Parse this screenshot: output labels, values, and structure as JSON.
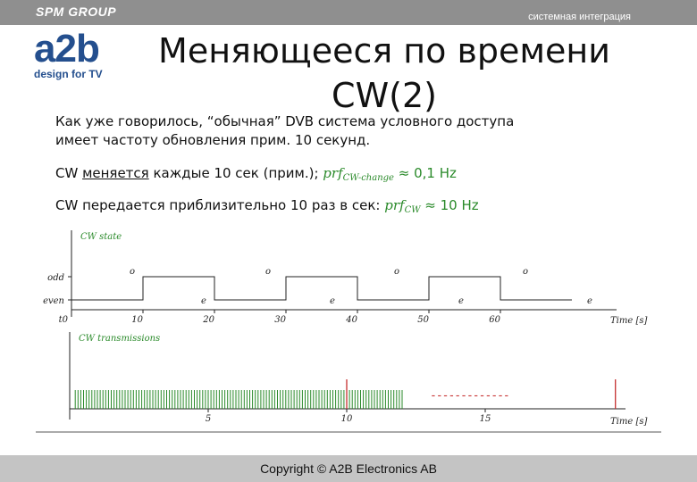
{
  "header": {
    "company": "SPM GROUP",
    "tagline": "системная интеграция",
    "logo_main": "a2b",
    "logo_sub": "design for TV"
  },
  "slide": {
    "title_line1": "Меняющееся по времени",
    "title_line2": "CW(2)",
    "para1_line1": "Как уже говорилось, “обычная” DVB система условного доступа",
    "para1_line2": "имеет частоту обновления прим. 10 секунд.",
    "para2_pre": "CW ",
    "para2_u": "меняется",
    "para2_mid": " каждые 10 сек (прим.); ",
    "para2_sym": "prf",
    "para2_sub": "CW-change",
    "para2_val": " ≈ 0,1 Hz",
    "para3_pre": "CW передается приблизительно 10 раз в сек: ",
    "para3_sym": "prf",
    "para3_sub": "CW",
    "para3_val": " ≈ 10 Hz"
  },
  "colors": {
    "brand_blue": "#244f8e",
    "header_gray": "#8f8f8f",
    "accent_green": "#2a8a2a",
    "line_red": "#c63030",
    "footer_gray": "#c4c4c4"
  },
  "chart_data": [
    {
      "type": "line",
      "ylabel": "CW state",
      "xlabel": "Time [s]",
      "y_categories": [
        "even",
        "odd"
      ],
      "x_ticks": [
        0,
        10,
        20,
        30,
        40,
        50,
        60
      ],
      "x_tick_labels": [
        "t0",
        "10",
        "20",
        "30",
        "40",
        "50",
        "60"
      ],
      "xlim": [
        0,
        75
      ],
      "step_x": [
        0,
        10,
        10,
        20,
        20,
        30,
        30,
        40,
        40,
        50,
        50,
        60,
        60,
        70
      ],
      "step_y": [
        "even",
        "even",
        "odd",
        "odd",
        "even",
        "even",
        "odd",
        "odd",
        "even",
        "even",
        "odd",
        "odd",
        "even",
        "even"
      ],
      "annotations": [
        {
          "label": "o",
          "x": 8.5,
          "level": "odd"
        },
        {
          "label": "e",
          "x": 18.5,
          "level": "even"
        },
        {
          "label": "o",
          "x": 27.5,
          "level": "odd"
        },
        {
          "label": "e",
          "x": 36.5,
          "level": "even"
        },
        {
          "label": "o",
          "x": 45.5,
          "level": "odd"
        },
        {
          "label": "e",
          "x": 54.5,
          "level": "even"
        },
        {
          "label": "o",
          "x": 63.5,
          "level": "odd"
        },
        {
          "label": "e",
          "x": 72.5,
          "level": "even"
        }
      ]
    },
    {
      "type": "bar",
      "ylabel": "CW transmissions",
      "xlabel": "Time [s]",
      "x_ticks": [
        5,
        10,
        15
      ],
      "x_tick_labels": [
        "5",
        "10",
        "15"
      ],
      "xlim": [
        0,
        20
      ],
      "series": [
        {
          "color": "#2a8a2a",
          "start": 0.2,
          "end": 10,
          "step": 0.1
        },
        {
          "color": "#2a8a2a",
          "start": 10,
          "end": 12,
          "step": 0.1
        }
      ],
      "dashed_segment": {
        "text": "-------------",
        "start": 13.0,
        "end": 15.8,
        "color": "#c63030"
      },
      "markers": [
        {
          "x": 10,
          "color": "#c63030"
        },
        {
          "x": 19.7,
          "color": "#c63030"
        }
      ]
    }
  ],
  "footer": {
    "copyright": "Copyright © A2B Electronics AB"
  }
}
